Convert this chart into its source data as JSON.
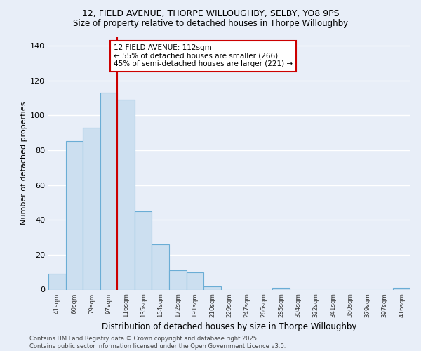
{
  "title_line1": "12, FIELD AVENUE, THORPE WILLOUGHBY, SELBY, YO8 9PS",
  "title_line2": "Size of property relative to detached houses in Thorpe Willoughby",
  "xlabel": "Distribution of detached houses by size in Thorpe Willoughby",
  "ylabel": "Number of detached properties",
  "categories": [
    "41sqm",
    "60sqm",
    "79sqm",
    "97sqm",
    "116sqm",
    "135sqm",
    "154sqm",
    "172sqm",
    "191sqm",
    "210sqm",
    "229sqm",
    "247sqm",
    "266sqm",
    "285sqm",
    "304sqm",
    "322sqm",
    "341sqm",
    "360sqm",
    "379sqm",
    "397sqm",
    "416sqm"
  ],
  "values": [
    9,
    85,
    93,
    113,
    109,
    45,
    26,
    11,
    10,
    2,
    0,
    0,
    0,
    1,
    0,
    0,
    0,
    0,
    0,
    0,
    1
  ],
  "bar_color": "#ccdff0",
  "bar_edge_color": "#6aadd5",
  "background_color": "#e8eef8",
  "plot_background": "#e8eef8",
  "grid_color": "#ffffff",
  "annotation_text_line1": "12 FIELD AVENUE: 112sqm",
  "annotation_text_line2": "← 55% of detached houses are smaller (266)",
  "annotation_text_line3": "45% of semi-detached houses are larger (221) →",
  "red_line_color": "#cc0000",
  "ylim": [
    0,
    145
  ],
  "yticks": [
    0,
    20,
    40,
    60,
    80,
    100,
    120,
    140
  ],
  "footer_line1": "Contains HM Land Registry data © Crown copyright and database right 2025.",
  "footer_line2": "Contains public sector information licensed under the Open Government Licence v3.0.",
  "annotation_box_color": "#ffffff",
  "annotation_box_edge": "#cc0000"
}
